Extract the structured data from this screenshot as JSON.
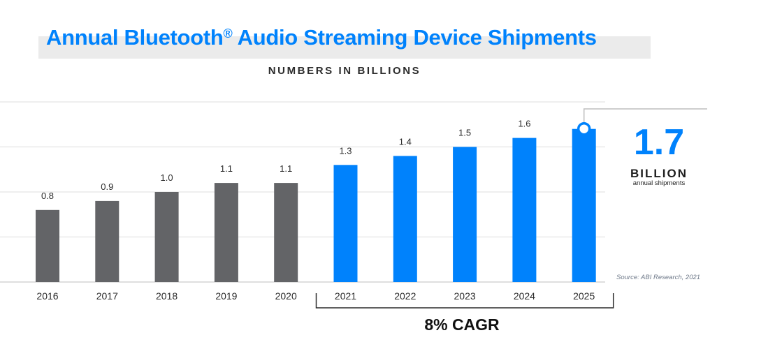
{
  "header": {
    "title": "Annual Bluetooth",
    "title_mark": "®",
    "title_rest": " Audio Streaming Device Shipments",
    "subtitle": "NUMBERS IN BILLIONS"
  },
  "callout": {
    "value": "1.7",
    "unit": "BILLION",
    "caption": "annual shipments"
  },
  "source": "Source: ABI Research, 2021",
  "cagr_label": "8% CAGR",
  "colors": {
    "actual": "#636467",
    "forecast": "#0082fc",
    "gridline": "#dcdcdc",
    "axis": "#bdbdbd"
  },
  "chart_data": {
    "type": "bar",
    "categories": [
      "2016",
      "2017",
      "2018",
      "2019",
      "2020",
      "2021",
      "2022",
      "2023",
      "2024",
      "2025"
    ],
    "values": [
      0.8,
      0.9,
      1.0,
      1.1,
      1.1,
      1.3,
      1.4,
      1.5,
      1.6,
      1.7
    ],
    "value_labels": [
      "0.8",
      "0.9",
      "1.0",
      "1.1",
      "1.1",
      "1.3",
      "1.4",
      "1.5",
      "1.6",
      ""
    ],
    "segments": [
      "actual",
      "actual",
      "actual",
      "actual",
      "actual",
      "forecast",
      "forecast",
      "forecast",
      "forecast",
      "forecast"
    ],
    "ylim": [
      0,
      2
    ],
    "grid": true,
    "highlight": {
      "category": "2025",
      "value": 1.7
    }
  }
}
